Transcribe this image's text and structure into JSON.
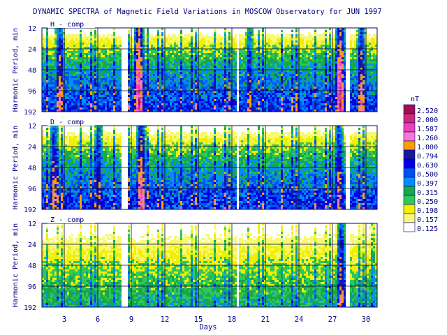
{
  "chart_data": {
    "type": "heatmap",
    "title": "DYNAMIC SPECTRA of Magnetic Field Variations in MOSCOW Observatory for JUN 1997",
    "xlabel": "Days",
    "x_ticks": [
      3,
      6,
      9,
      12,
      15,
      18,
      21,
      24,
      27,
      30
    ],
    "x_range": [
      1,
      31
    ],
    "ylabel": "Harmonic Period, min",
    "y_ticks": [
      12,
      24,
      48,
      96,
      192
    ],
    "y_scale": "log2",
    "y_range": [
      12,
      192
    ],
    "grid": true,
    "panels": [
      {
        "label": "H - comp",
        "intensity": "high",
        "bursts": [
          {
            "day": 2.5,
            "value": 1.587
          },
          {
            "day": 9.6,
            "value": 2.52
          },
          {
            "day": 19.5,
            "value": 1.26
          },
          {
            "day": 27.6,
            "value": 2.52
          },
          {
            "day": 29.5,
            "value": 1.587
          }
        ]
      },
      {
        "label": "D - comp",
        "intensity": "high",
        "bursts": [
          {
            "day": 2.0,
            "value": 1.587
          },
          {
            "day": 6.0,
            "value": 1.26
          },
          {
            "day": 9.8,
            "value": 2.0
          },
          {
            "day": 27.5,
            "value": 1.587
          }
        ]
      },
      {
        "label": "Z - comp",
        "intensity": "low",
        "bursts": [
          {
            "day": 27.7,
            "value": 1.587
          },
          {
            "day": 30.5,
            "value": 0.63
          }
        ]
      }
    ],
    "gaps": [
      {
        "from": 7.95,
        "to": 8.55
      },
      {
        "from": 18.3,
        "to": 18.6
      },
      {
        "from": 28.15,
        "to": 28.45
      }
    ],
    "colorbar": {
      "unit": "nT",
      "levels": [
        "2.520",
        "2.000",
        "1.587",
        "1.260",
        "1.000",
        "0.794",
        "0.630",
        "0.500",
        "0.397",
        "0.315",
        "0.250",
        "0.198",
        "0.157",
        "0.125"
      ],
      "colors": [
        "#a0104a",
        "#d02878",
        "#f040b8",
        "#f878d0",
        "#f8a000",
        "#1818a0",
        "#0000e0",
        "#0050f0",
        "#0090f8",
        "#18a848",
        "#30c858",
        "#f0f000",
        "#f8f878",
        "#ffffff"
      ]
    }
  }
}
